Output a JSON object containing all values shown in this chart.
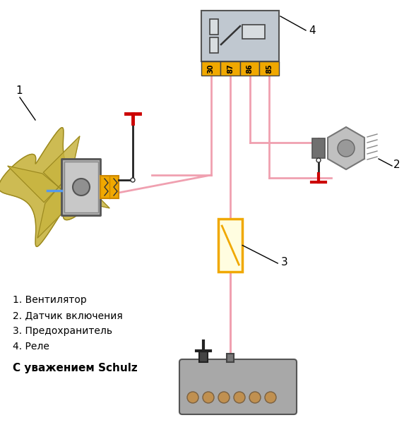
{
  "background_color": "#ffffff",
  "legend_items": [
    "1. Вентилятор",
    "2. Датчик включения",
    "3. Предохранитель",
    "4. Реле"
  ],
  "signature": "С уважением Schulz",
  "relay_pins": [
    "30",
    "87",
    "86",
    "85"
  ],
  "wire_pink": "#f0a0b0",
  "wire_blue": "#5599ee",
  "wire_black": "#222222",
  "relay_body": "#c0c8d0",
  "relay_pin_col": "#f0a800",
  "fuse_border": "#f0a800",
  "fan_blade_col": "#c8b440",
  "fan_motor_col": "#909090",
  "battery_col": "#a8a8a8",
  "connector_col": "#f0a800",
  "red_t_col": "#cc0000",
  "sensor_body": "#888888",
  "sensor_thread": "#aaaaaa"
}
